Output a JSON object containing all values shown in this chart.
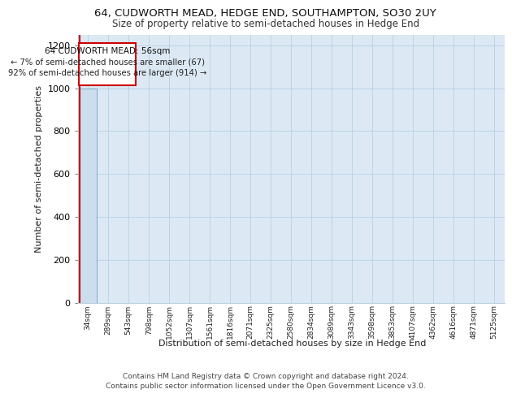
{
  "title1": "64, CUDWORTH MEAD, HEDGE END, SOUTHAMPTON, SO30 2UY",
  "title2": "Size of property relative to semi-detached houses in Hedge End",
  "xlabel": "Distribution of semi-detached houses by size in Hedge End",
  "ylabel": "Number of semi-detached properties",
  "categories": [
    "34sqm",
    "289sqm",
    "543sqm",
    "798sqm",
    "1052sqm",
    "1307sqm",
    "1561sqm",
    "1816sqm",
    "2071sqm",
    "2325sqm",
    "2580sqm",
    "2834sqm",
    "3089sqm",
    "3343sqm",
    "3598sqm",
    "3853sqm",
    "4107sqm",
    "4362sqm",
    "4616sqm",
    "4871sqm",
    "5125sqm"
  ],
  "bar_values": [
    1000,
    0,
    0,
    0,
    0,
    0,
    0,
    0,
    0,
    0,
    0,
    0,
    0,
    0,
    0,
    0,
    0,
    0,
    0,
    0,
    0
  ],
  "bar_color": "#ccdded",
  "bar_edge_color": "#7aaac8",
  "annotation_box_edge_color": "#cc0000",
  "property_line_color": "#cc0000",
  "annotation_title": "64 CUDWORTH MEAD: 56sqm",
  "annotation_line1": "← 7% of semi-detached houses are smaller (67)",
  "annotation_line2": "92% of semi-detached houses are larger (914) →",
  "ylim": [
    0,
    1250
  ],
  "yticks": [
    0,
    200,
    400,
    600,
    800,
    1000,
    1200
  ],
  "footer1": "Contains HM Land Registry data © Crown copyright and database right 2024.",
  "footer2": "Contains public sector information licensed under the Open Government Licence v3.0.",
  "bg_color": "#ffffff",
  "plot_bg_color": "#dce9f5",
  "grid_color": "#b8cfe0"
}
